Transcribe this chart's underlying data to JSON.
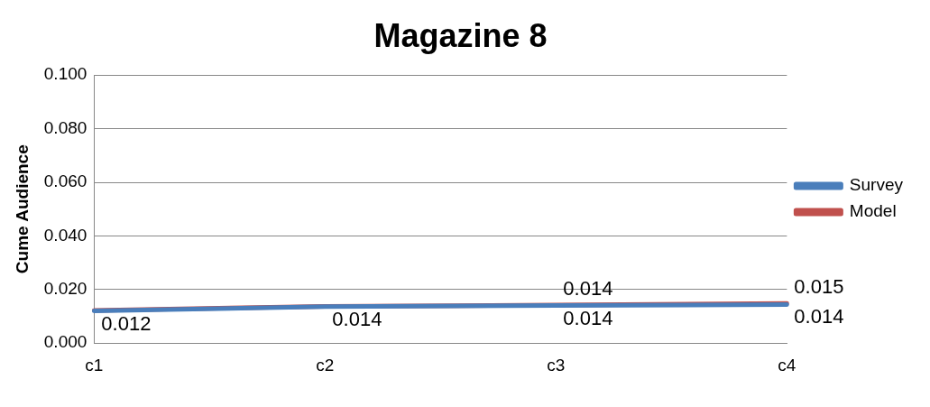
{
  "chart_data": {
    "type": "line",
    "title": "Magazine 8",
    "ylabel": "Cume Audience",
    "categories": [
      "c1",
      "c2",
      "c3",
      "c4"
    ],
    "series": [
      {
        "name": "Survey",
        "color": "#4a7ebb",
        "values": [
          0.012,
          0.0136,
          0.014,
          0.0144
        ],
        "value_labels": [
          "0.012",
          "0.014",
          "0.014",
          "0.014"
        ]
      },
      {
        "name": "Model",
        "color": "#c0504d",
        "values": [
          0.0122,
          0.0137,
          0.0142,
          0.0148
        ],
        "value_labels": [
          null,
          null,
          "0.014",
          "0.015"
        ]
      }
    ],
    "ylim": [
      0,
      0.1
    ],
    "yticks": [
      {
        "value": 0,
        "label": "0.000"
      },
      {
        "value": 0.02,
        "label": "0.020"
      },
      {
        "value": 0.04,
        "label": "0.040"
      },
      {
        "value": 0.06,
        "label": "0.060"
      },
      {
        "value": 0.08,
        "label": "0.080"
      },
      {
        "value": 0.1,
        "label": "0.100"
      }
    ],
    "grid": "y",
    "legend": "right",
    "marker": "none",
    "line_style": "solid"
  }
}
